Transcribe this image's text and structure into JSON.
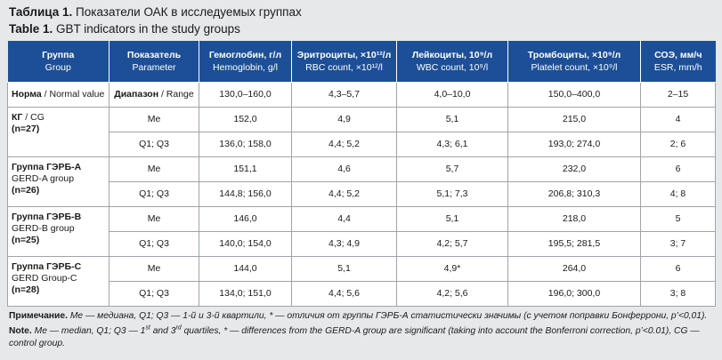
{
  "title_ru_label": "Таблица 1.",
  "title_ru_text": " Показатели ОАК в исследуемых группах",
  "title_en_label": "Table 1.",
  "title_en_text": " GBT indicators in the study groups",
  "header": [
    {
      "ru": "Группа",
      "en": "Group"
    },
    {
      "ru": "Показатель",
      "en": "Parameter"
    },
    {
      "ru": "Гемоглобин, г/л",
      "en": "Hemoglobin, g/l"
    },
    {
      "ru": "Эритроциты, ×10¹²/л",
      "en": "RBC count, ×10¹²/l"
    },
    {
      "ru": "Лейкоциты, 10⁹/л",
      "en": "WBC count, 10⁹/l"
    },
    {
      "ru": "Тромбоциты, ×10⁹/л",
      "en": "Platelet count, ×10⁹/l"
    },
    {
      "ru": "СОЭ, мм/ч",
      "en": "ESR, mm/h"
    }
  ],
  "norm": {
    "group_ru": "Норма",
    "group_en": " / Normal value",
    "param_ru": "Диапазон",
    "param_en": " / Range",
    "values": [
      "130,0–160,0",
      "4,3–5,7",
      "4,0–10,0",
      "150,0–400,0",
      "2–15"
    ]
  },
  "groups": [
    {
      "name_ru": "КГ",
      "name_en": " / CG",
      "n": "(n=27)",
      "me": [
        "Me",
        "152,0",
        "4,9",
        "5,1",
        "215,0",
        "4"
      ],
      "q": [
        "Q1; Q3",
        "136,0; 158,0",
        "4,4; 5,2",
        "4,3; 6,1",
        "193,0; 274,0",
        "2; 6"
      ]
    },
    {
      "name_ru": "Группа ГЭРБ-А",
      "name_en": "GERD-A group",
      "n": "(n=26)",
      "me": [
        "Me",
        "151,1",
        "4,6",
        "5,7",
        "232,0",
        "6"
      ],
      "q": [
        "Q1; Q3",
        "144,8; 156,0",
        "4,4; 5,2",
        "5,1; 7,3",
        "206,8; 310,3",
        "4; 8"
      ]
    },
    {
      "name_ru": "Группа ГЭРБ-В",
      "name_en": "GERD-B group",
      "n": "(n=25)",
      "me": [
        "Me",
        "146,0",
        "4,4",
        "5,1",
        "218,0",
        "5"
      ],
      "q": [
        "Q1; Q3",
        "140,0; 154,0",
        "4,3; 4,9",
        "4,2; 5,7",
        "195,5; 281,5",
        "3; 7"
      ]
    },
    {
      "name_ru": "Группа ГЭРБ-С",
      "name_en": "GERD Group-C",
      "n": "(n=28)",
      "me": [
        "Me",
        "144,0",
        "5,1",
        "4,9*",
        "264,0",
        "6"
      ],
      "q": [
        "Q1; Q3",
        "134,0; 151,0",
        "4,4; 5,6",
        "4,2; 5,6",
        "196,0; 300,0",
        "3; 8"
      ]
    }
  ],
  "note_ru_label": "Примечание.",
  "note_ru_text": " Me — медиана, Q1; Q3 — 1-й и 3-й квартили, * — отличия от группы ГЭРБ-А статистически значимы (с учетом поправки Бонферрони, p’<0,01).",
  "note_en_label": "Note.",
  "note_en_a": " Me — median, Q1; Q3 — 1",
  "note_en_sup1": "st",
  "note_en_b": " and 3",
  "note_en_sup2": "rd",
  "note_en_c": " quartiles, * — differences from the GERD-A group are significant (taking into account the Bonferroni correction, p’<0.01), CG — control group."
}
